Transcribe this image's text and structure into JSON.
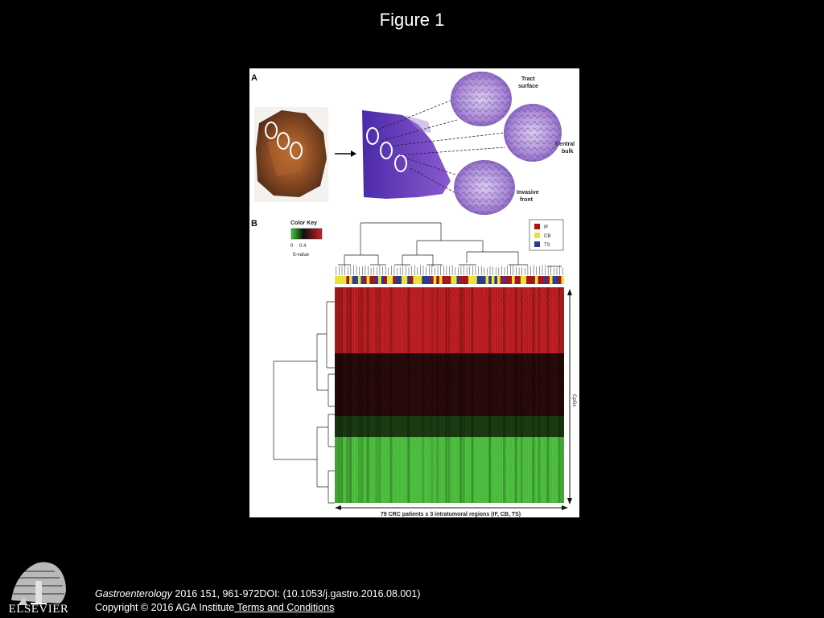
{
  "slide": {
    "title": "Figure 1"
  },
  "figure": {
    "panel_a": {
      "letter": "A",
      "labels": {
        "tract_surface": [
          "Tract",
          "surface"
        ],
        "central_bulk": [
          "Central",
          "bulk"
        ],
        "invasive_front": [
          "Invasive",
          "front"
        ]
      }
    },
    "panel_b": {
      "letter": "B",
      "color_key": {
        "title": "Color Key",
        "ticks": [
          "0",
          "0.4"
        ],
        "label": "ß-value"
      },
      "legend": [
        {
          "code": "IF",
          "color": "#a3151a"
        },
        {
          "code": "CB",
          "color": "#e8e23a"
        },
        {
          "code": "TS",
          "color": "#2e3a8c"
        }
      ],
      "y_axis_label": "CpGs",
      "x_axis_label": "79 CRC patients x 3 intratumoral regions (IF, CB, TS)"
    }
  },
  "footer": {
    "citation_journal": "Gastroenterology",
    "citation_rest": " 2016 151, 961-972DOI: (10.1053/j.gastro.2016.08.001)",
    "copyright": "Copyright © 2016 AGA Institute",
    "terms_link": " Terms and Conditions"
  },
  "publisher": {
    "name": "ELSEVIER"
  },
  "colors": {
    "background": "#000000",
    "heat_red": "#c42024",
    "heat_black": "#111111",
    "heat_green": "#4ec23f",
    "tissue_purple": "#6a3ab0",
    "slide_lilac": "#b49ad6"
  }
}
